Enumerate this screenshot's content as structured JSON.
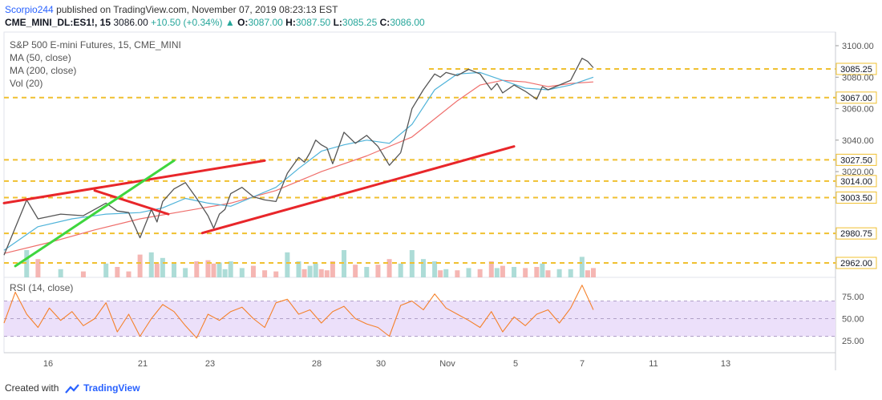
{
  "header": {
    "author": "Scorpio244",
    "published_text": "published on TradingView.com, November 07, 2019 08:23:13 EST",
    "symbol": "CME_MINI_DL:ES1!, 15",
    "last": "3086.00",
    "change_arrow": "▲",
    "change": "+10.50 (+0.34%)",
    "o_label": "O:",
    "o": "3087.00",
    "h_label": "H:",
    "h": "3087.50",
    "l_label": "L:",
    "l": "3085.25",
    "c_label": "C:",
    "c": "3086.00"
  },
  "legend": {
    "title": "S&P 500 E-mini Futures, 15, CME_MINI",
    "ma50": "MA (50, close)",
    "ma200": "MA (200, close)",
    "vol": "Vol (20)",
    "rsi": "RSI (14, close)"
  },
  "footer": {
    "created_with": "Created with",
    "brand": "TradingView"
  },
  "colors": {
    "ma50": "#4fb3d9",
    "ma200": "#ef6f6c",
    "price": "#555555",
    "level": "#f0c030",
    "trend_red": "#e8262a",
    "trend_green": "#3ed63e",
    "rsi": "#f5812a",
    "rsi_band": "#ece0fa",
    "vol_up": "#9fd6d0",
    "vol_down": "#f3a9a6"
  },
  "chart_data": [
    {
      "type": "line",
      "title": "S&P 500 E-mini Futures, 15, CME_MINI",
      "x_ticks": [
        "16",
        "21",
        "23",
        "28",
        "30",
        "Nov",
        "5",
        "7",
        "11",
        "13"
      ],
      "ylim": [
        2950,
        3105
      ],
      "y_ticks": [
        3020,
        3040,
        3060,
        3080,
        3100
      ],
      "y_tick_labels": [
        "3020.00",
        "3040.00",
        "3060.00",
        "3080.00",
        "3100.00"
      ],
      "levels": [
        3085.25,
        3067.0,
        3027.5,
        3014.0,
        3003.5,
        2980.75,
        2962.0
      ],
      "level_labels": [
        "3085.25",
        "3067.00",
        "3027.50",
        "3014.00",
        "3003.50",
        "2980.75",
        "2962.00"
      ],
      "series": [
        {
          "name": "ES1!",
          "x": [
            0,
            2,
            3,
            5,
            7,
            9,
            10,
            11,
            12,
            13,
            13.5,
            14,
            15,
            16,
            17,
            18,
            18.5,
            19,
            19.5,
            20,
            21,
            22,
            23,
            24,
            25,
            26,
            26.5,
            27,
            27.5,
            28,
            28.5,
            29,
            30,
            31,
            32,
            33,
            34,
            35
          ],
          "y": [
            2967,
            3002,
            2990,
            2993,
            2992,
            3000,
            2995,
            2994,
            2978,
            2996,
            2988,
            3001,
            3009,
            3013,
            3003,
            2992,
            2984,
            2993,
            2996,
            3006,
            3010,
            3004,
            3002,
            3001,
            3019,
            3029,
            3026,
            3032,
            3040,
            3037,
            3035,
            3025,
            3045,
            3038,
            3043,
            3036,
            3024,
            3032
          ]
        },
        {
          "name": "ES1! (Nov)",
          "x": [
            35,
            36,
            37,
            38,
            38.5,
            39,
            40,
            41,
            42,
            43,
            43.5,
            44,
            45,
            46,
            47,
            47.5,
            48,
            49,
            50,
            51,
            51.5,
            52
          ],
          "y": [
            3032,
            3060,
            3072,
            3082,
            3080,
            3083,
            3081,
            3085,
            3082,
            3072,
            3076,
            3070,
            3075,
            3071,
            3066,
            3074,
            3072,
            3075,
            3078,
            3092,
            3090,
            3086
          ]
        }
      ],
      "ma50": {
        "x": [
          0,
          3,
          6,
          9,
          12,
          14,
          16,
          18,
          20,
          22,
          24,
          26,
          28,
          30,
          32,
          34,
          36,
          38,
          40,
          42,
          44,
          46,
          48,
          50,
          52
        ],
        "y": [
          2970,
          2985,
          2990,
          2993,
          2994,
          2997,
          3003,
          3000,
          2998,
          3004,
          3010,
          3022,
          3033,
          3037,
          3040,
          3038,
          3050,
          3072,
          3082,
          3083,
          3078,
          3073,
          3072,
          3075,
          3080
        ]
      },
      "ma200": {
        "x": [
          0,
          4,
          8,
          12,
          16,
          20,
          24,
          28,
          32,
          36,
          40,
          42,
          44,
          46,
          48,
          50,
          52
        ],
        "y": [
          2968,
          2975,
          2983,
          2990,
          2995,
          3000,
          3008,
          3020,
          3030,
          3042,
          3065,
          3075,
          3078,
          3077,
          3074,
          3076,
          3077
        ]
      },
      "trendlines": [
        {
          "color": "red",
          "x": [
            0,
            23
          ],
          "y": [
            3000,
            3027
          ]
        },
        {
          "color": "red",
          "x": [
            8,
            14.5
          ],
          "y": [
            3008,
            2993
          ]
        },
        {
          "color": "red",
          "x": [
            17.5,
            45
          ],
          "y": [
            2981,
            3036
          ]
        },
        {
          "color": "green",
          "x": [
            1,
            15
          ],
          "y": [
            2960,
            3027
          ]
        }
      ]
    },
    {
      "type": "line",
      "title": "RSI (14, close)",
      "ylim": [
        15,
        95
      ],
      "y_ticks": [
        25,
        50,
        75
      ],
      "y_tick_labels": [
        "25.00",
        "50.00",
        "75.00"
      ],
      "band": [
        30,
        70
      ],
      "series": [
        {
          "name": "RSI",
          "x": [
            0,
            1,
            2,
            3,
            4,
            5,
            6,
            7,
            8,
            9,
            10,
            11,
            12,
            13,
            14,
            15,
            16,
            17,
            18,
            19,
            20,
            21,
            22,
            23,
            24,
            25,
            26,
            27,
            28,
            29,
            30,
            31,
            32,
            33,
            34,
            35,
            36,
            37,
            38,
            39,
            40,
            41,
            42,
            43,
            44,
            45,
            46,
            47,
            48,
            49,
            50,
            51,
            52
          ],
          "y": [
            45,
            80,
            55,
            40,
            62,
            48,
            58,
            42,
            50,
            68,
            35,
            55,
            30,
            50,
            66,
            58,
            42,
            28,
            55,
            48,
            58,
            63,
            50,
            40,
            68,
            72,
            55,
            60,
            45,
            58,
            64,
            50,
            44,
            40,
            30,
            65,
            70,
            60,
            78,
            62,
            55,
            48,
            40,
            58,
            35,
            52,
            42,
            55,
            60,
            45,
            62,
            88,
            60
          ]
        }
      ]
    }
  ]
}
